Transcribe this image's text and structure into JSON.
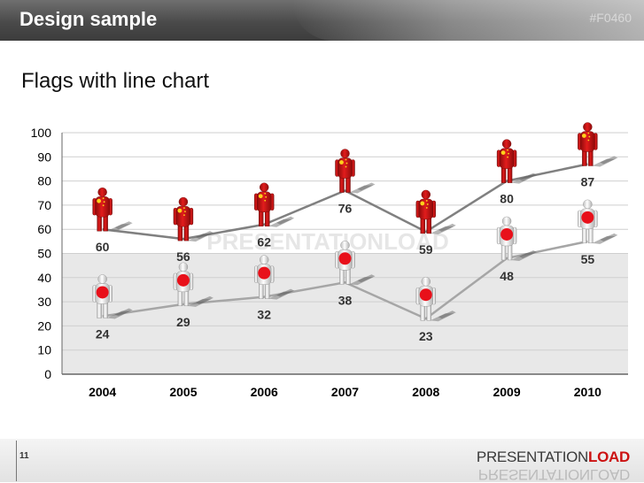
{
  "header": {
    "title": "Design sample",
    "code": "#F0460"
  },
  "slide": {
    "title": "Flags with line chart"
  },
  "footer": {
    "page": "11",
    "brand_part1": "PRESENTATION",
    "brand_part2": "LOAD"
  },
  "watermark": "PRESENTATIONLOAD",
  "chart_data": {
    "type": "line",
    "categories": [
      "2004",
      "2005",
      "2006",
      "2007",
      "2008",
      "2009",
      "2010"
    ],
    "ylim": [
      0,
      100
    ],
    "yticks": [
      0,
      10,
      20,
      30,
      40,
      50,
      60,
      70,
      80,
      90,
      100
    ],
    "grid": true,
    "series": [
      {
        "values": [
          60,
          56,
          62,
          76,
          59,
          80,
          87
        ],
        "color": "#808080",
        "marker_flag": "china",
        "marker_colors": [
          "#cc1010",
          "#ffd21a"
        ]
      },
      {
        "values": [
          24,
          29,
          32,
          38,
          23,
          48,
          55
        ],
        "color": "#a6a6a6",
        "marker_flag": "japan",
        "marker_colors": [
          "#ffffff",
          "#e8101a"
        ]
      }
    ],
    "data_labels": [
      [
        "60",
        "56",
        "62",
        "76",
        "59",
        "80",
        "87"
      ],
      [
        "24",
        "29",
        "32",
        "38",
        "23",
        "48",
        "55"
      ]
    ],
    "band": {
      "from": 0,
      "to": 50,
      "color": "#e8e8e8"
    }
  }
}
